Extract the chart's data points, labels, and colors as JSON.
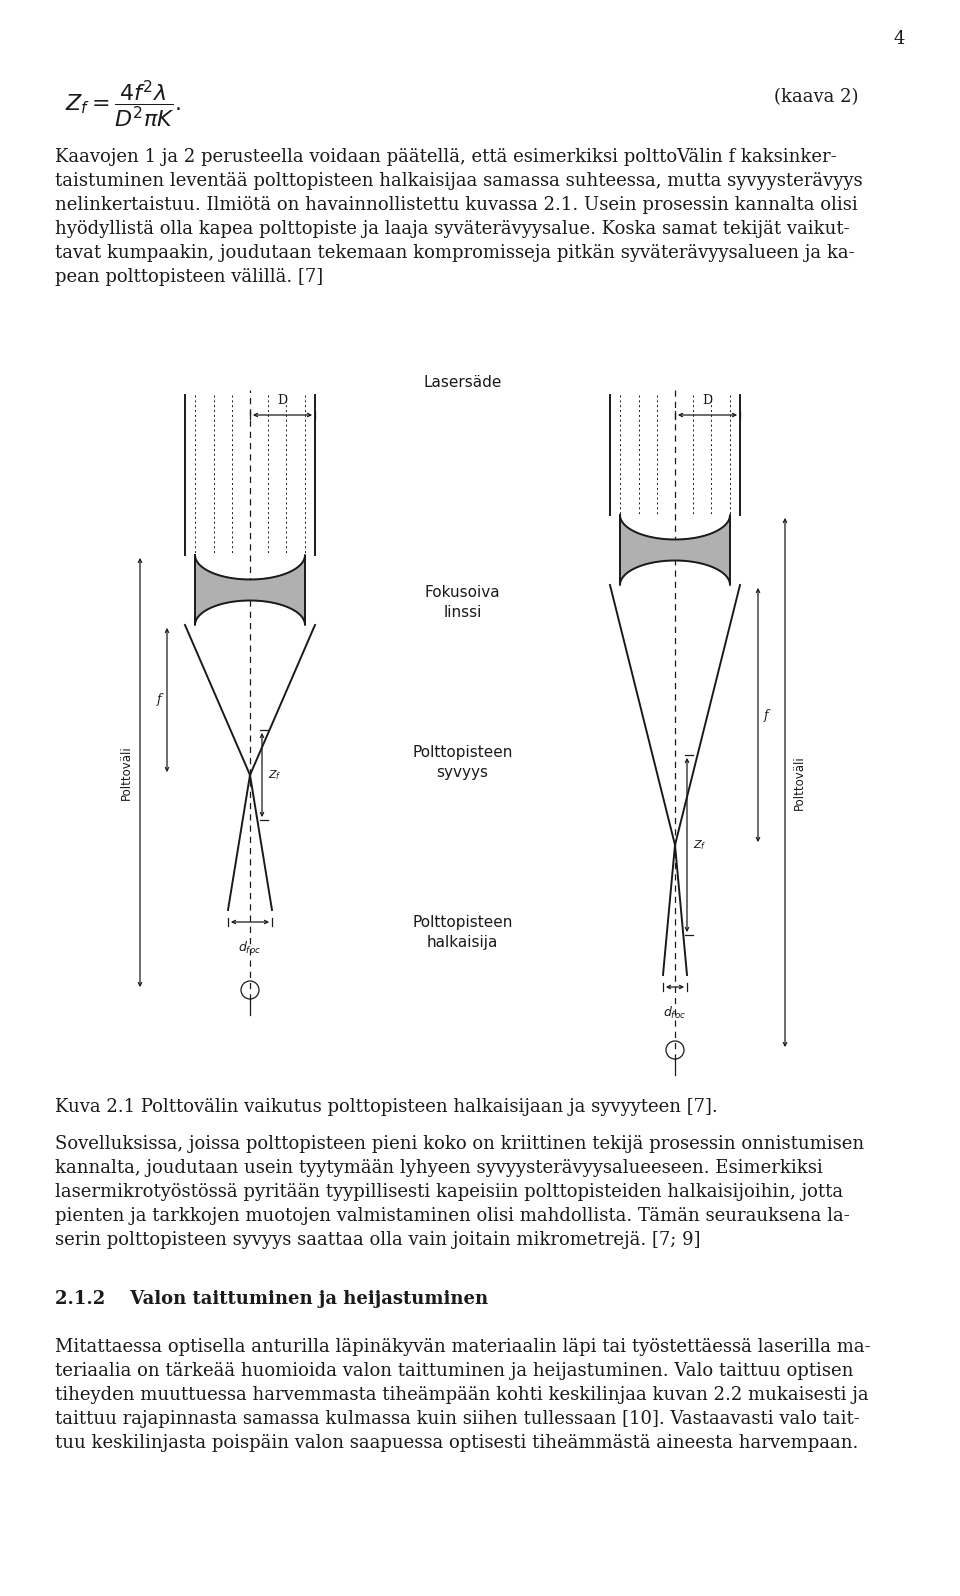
{
  "page_number": "4",
  "bg_color": "#ffffff",
  "text_color": "#1a1a1a",
  "para1_lines": [
    "Kaavojen 1 ja 2 perusteella voidaan päätellä, että esimerkiksi polttoVälin f kaksinker-",
    "taistuminen leventää polttopisteen halkaisijaa samassa suhteessa, mutta syvyysterävyys",
    "nelinkertaistuu. Ilmiötä on havainnollistettu kuvassa 2.1. Usein prosessin kannalta olisi",
    "hyödyllistä olla kapea polttopiste ja laaja syväterävyysalue. Koska samat tekijät vaikut-",
    "tavat kumpaakin, joudutaan tekemaan kompromisseja pitkän syväterävyysalueen ja ka-",
    "pean polttopisteen välillä. [7]"
  ],
  "caption": "Kuva 2.1 Polttovälin vaikutus polttopisteen halkaisijaan ja syvyyteen [7].",
  "para2_lines": [
    "Sovelluksissa, joissa polttopisteen pieni koko on kriittinen tekijä prosessin onnistumisen",
    "kannalta, joudutaan usein tyytymään lyhyeen syvyysterävyysalueeseen. Esimerkiksi",
    "lasermikrotyöstössä pyritään tyypillisesti kapeisiin polttopisteiden halkaisijoihin, jotta",
    "pienten ja tarkkojen muotojen valmistaminen olisi mahdollista. Tämän seurauksena la-",
    "serin polttopisteen syvyys saattaa olla vain joitain mikrometrejä. [7; 9]"
  ],
  "section_heading": "2.1.2    Valon taittuminen ja heijastuminen",
  "para3_lines": [
    "Mitattaessa optisella anturilla läpinäkyvän materiaalin läpi tai työstettäessä laserilla ma-",
    "teriaalia on tärkeää huomioida valon taittuminen ja heijastuminen. Valo taittuu optisen",
    "tiheyden muuttuessa harvemmasta tiheämpään kohti keskilinjaa kuvan 2.2 mukaisesti ja",
    "taittuu rajapinnasta samassa kulmassa kuin siihen tullessaan [10]. Vastaavasti valo tait-",
    "tuu keskilinjasta poispäin valon saapuessa optisesti tiheämmästä aineesta harvempaan."
  ]
}
